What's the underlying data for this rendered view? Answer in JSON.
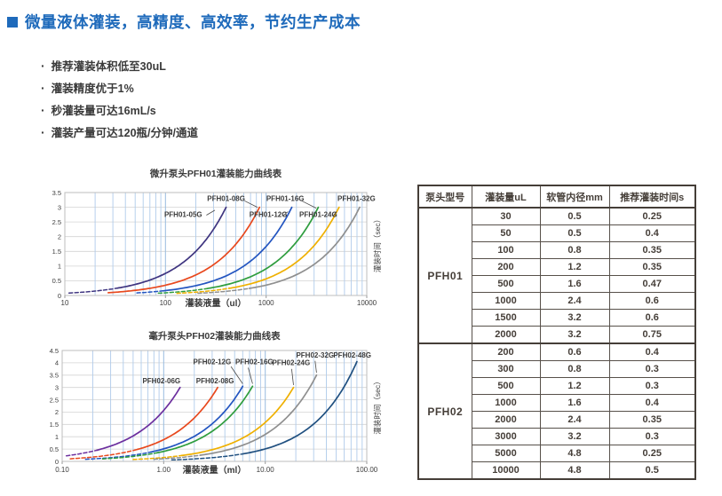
{
  "header": {
    "title": "微量液体灌装，高精度、高效率，节约生产成本",
    "accent_color": "#1E6ABB"
  },
  "bullets": [
    "推荐灌装体积低至30uL",
    "灌装精度优于1%",
    "秒灌装量可达16mL/s",
    "灌装产量可达120瓶/分钟/通道"
  ],
  "chart_data": [
    {
      "type": "line",
      "title": "微升泵头PFH01灌装能力曲线表",
      "xlabel": "灌装液量（ul）",
      "ylabel": "灌装时间（sec）",
      "x_scale": "log",
      "xlim": [
        10,
        10000
      ],
      "x_ticks": [
        "10",
        "100",
        "1000",
        "10000"
      ],
      "ylim": [
        0,
        3.5
      ],
      "y_step": 0.5,
      "grid": true,
      "legend": "inline-labels",
      "grid_v_color": "#AFCBEA",
      "grid_h_color": "#D4D4D4",
      "series": [
        {
          "name": "PFH01-05G",
          "color": "#3F3580",
          "x_start": 11,
          "dash_until": 33,
          "x_end": 400,
          "t_end": 3.0,
          "label_at": [
            150,
            2.67
          ],
          "leader": [
            [
              255,
              2.73
            ],
            [
              310,
              2.9
            ]
          ]
        },
        {
          "name": "PFH01-08G",
          "color": "#E8481D",
          "x_start": 27,
          "dash_until": 27,
          "x_end": 860,
          "t_end": 3.0,
          "label_at": [
            400,
            3.22
          ],
          "leader": [
            [
              610,
              3.22
            ],
            [
              820,
              3.0
            ]
          ]
        },
        {
          "name": "PFH01-12G",
          "color": "#2355C0",
          "x_start": 52,
          "dash_until": 95,
          "x_end": 1800,
          "t_end": 3.0,
          "label_at": [
            1050,
            2.67
          ],
          "leader": [
            [
              1480,
              2.72
            ],
            [
              1650,
              2.85
            ]
          ]
        },
        {
          "name": "PFH01-16G",
          "color": "#2F9D3E",
          "x_start": 85,
          "dash_until": 260,
          "x_end": 3300,
          "t_end": 3.0,
          "label_at": [
            1550,
            3.22
          ],
          "leader": [
            [
              2250,
              3.22
            ],
            [
              3150,
              2.97
            ]
          ]
        },
        {
          "name": "PFH01-24G",
          "color": "#EFB000",
          "x_start": 130,
          "dash_until": 430,
          "x_end": 5300,
          "t_end": 3.0,
          "label_at": [
            3300,
            2.67
          ],
          "leader": [
            [
              4650,
              2.72
            ],
            [
              5000,
              2.85
            ]
          ]
        },
        {
          "name": "PFH01-32G",
          "color": "#8F8F8F",
          "x_start": 210,
          "dash_until": 680,
          "x_end": 8500,
          "t_end": 3.0,
          "label_at": [
            7900,
            3.22
          ],
          "leader": []
        }
      ]
    },
    {
      "type": "line",
      "title": "毫升泵头PFH02灌装能力曲线表",
      "xlabel": "灌装液量（ml）",
      "ylabel": "灌装时间（sec）",
      "x_scale": "log",
      "xlim": [
        0.1,
        100
      ],
      "x_ticks": [
        "0.10",
        "1.00",
        "10.00",
        "100.00"
      ],
      "ylim": [
        0,
        4.5
      ],
      "y_step": 0.5,
      "grid": true,
      "legend": "inline-labels",
      "grid_v_color": "#AFCBEA",
      "grid_h_color": "#D4D4D4",
      "series": [
        {
          "name": "PFH02-06G",
          "color": "#6C2F9E",
          "x_start": 0.11,
          "dash_until": 0.22,
          "x_end": 1.45,
          "t_end": 3.0,
          "label_at": [
            0.95,
            3.17
          ],
          "leader": []
        },
        {
          "name": "PFH02-08G",
          "color": "#E8481D",
          "x_start": 0.12,
          "dash_until": 0.55,
          "x_end": 3.4,
          "t_end": 3.0,
          "label_at": [
            3.2,
            3.17
          ],
          "leader": []
        },
        {
          "name": "PFH02-12G",
          "color": "#2355C0",
          "x_start": 0.17,
          "dash_until": 0.75,
          "x_end": 6.0,
          "t_end": 3.05,
          "label_at": [
            3.0,
            3.95
          ],
          "leader": [
            [
              4.6,
              3.85
            ],
            [
              6.0,
              3.15
            ]
          ]
        },
        {
          "name": "PFH02-16G",
          "color": "#2F9D3E",
          "x_start": 0.25,
          "dash_until": 0.85,
          "x_end": 7.5,
          "t_end": 3.05,
          "label_at": [
            7.8,
            3.95
          ],
          "leader": [
            [
              6.8,
              3.8
            ],
            [
              7.5,
              3.15
            ]
          ]
        },
        {
          "name": "PFH02-24G",
          "color": "#EFB000",
          "x_start": 0.5,
          "dash_until": 1.5,
          "x_end": 19,
          "t_end": 3.0,
          "label_at": [
            18,
            3.9
          ],
          "leader": [
            [
              18.2,
              3.75
            ],
            [
              19,
              3.1
            ]
          ]
        },
        {
          "name": "PFH02-32G",
          "color": "#8F8F8F",
          "x_start": 0.8,
          "dash_until": 2.3,
          "x_end": 32,
          "t_end": 3.5,
          "label_at": [
            31,
            4.22
          ],
          "leader": [
            [
              31,
              4.08
            ],
            [
              32,
              3.6
            ]
          ]
        },
        {
          "name": "PFH02-48G",
          "color": "#205080",
          "x_start": 1.2,
          "dash_until": 6.0,
          "x_end": 80,
          "t_end": 4.05,
          "label_at": [
            72,
            4.22
          ],
          "leader": []
        }
      ]
    }
  ],
  "table": {
    "headers": [
      "泵头型号",
      "灌装量uL",
      "软管内径mm",
      "推荐灌装时间s"
    ],
    "groups": [
      {
        "model": "PFH01",
        "rows": [
          [
            "30",
            "0.5",
            "0.25"
          ],
          [
            "50",
            "0.5",
            "0.4"
          ],
          [
            "100",
            "0.8",
            "0.35"
          ],
          [
            "200",
            "1.2",
            "0.35"
          ],
          [
            "500",
            "1.6",
            "0.47"
          ],
          [
            "1000",
            "2.4",
            "0.6"
          ],
          [
            "1500",
            "3.2",
            "0.6"
          ],
          [
            "2000",
            "3.2",
            "0.75"
          ]
        ]
      },
      {
        "model": "PFH02",
        "rows": [
          [
            "200",
            "0.6",
            "0.4"
          ],
          [
            "300",
            "0.8",
            "0.3"
          ],
          [
            "500",
            "1.2",
            "0.3"
          ],
          [
            "1000",
            "1.6",
            "0.4"
          ],
          [
            "2000",
            "2.4",
            "0.35"
          ],
          [
            "3000",
            "3.2",
            "0.3"
          ],
          [
            "5000",
            "4.8",
            "0.25"
          ],
          [
            "10000",
            "4.8",
            "0.5"
          ]
        ]
      }
    ]
  }
}
